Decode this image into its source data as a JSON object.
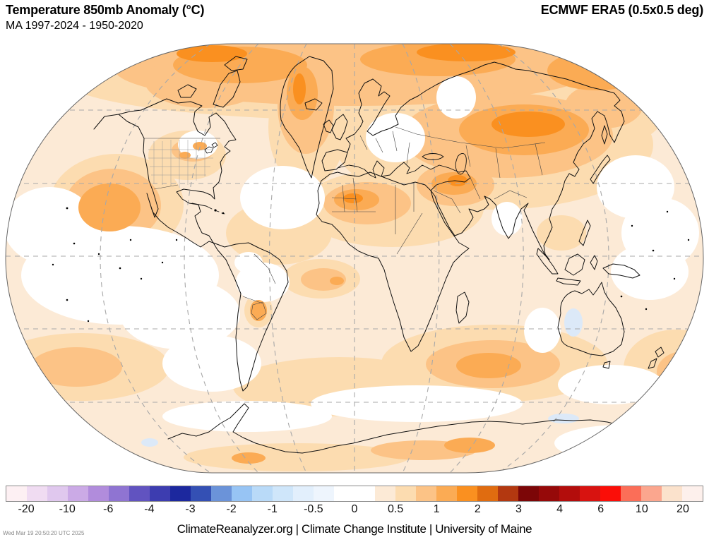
{
  "header": {
    "title": "Temperature 850mb Anomaly (°C)",
    "subtitle": "MA 1997-2024 - 1950-2020",
    "source": "ECMWF ERA5 (0.5x0.5 deg)"
  },
  "footer": {
    "credit": "ClimateReanalyzer.org | Climate Change Institute | University of Maine",
    "timestamp": "Wed Mar 19 20:50:20 UTC 2025"
  },
  "colorbar": {
    "units": "°C",
    "tick_labels": [
      "-20",
      "-10",
      "-6",
      "-4",
      "-3",
      "-2",
      "-1",
      "-0.5",
      "0",
      "0.5",
      "1",
      "2",
      "3",
      "4",
      "6",
      "10",
      "20"
    ],
    "segments": [
      "#fdf0f3",
      "#f0dcf2",
      "#e0c8ee",
      "#cbaae6",
      "#b18cdc",
      "#8f74d2",
      "#6153c0",
      "#3d3db0",
      "#1c289e",
      "#3450b4",
      "#6b93d9",
      "#97c4f4",
      "#b9daf8",
      "#cfe6fa",
      "#e2effc",
      "#eef5fd",
      "#ffffff",
      "#ffffff",
      "#fcead6",
      "#fcdcb0",
      "#fcc386",
      "#fbab54",
      "#fa9020",
      "#e06c10",
      "#b33810",
      "#7c0607",
      "#960909",
      "#b30d0c",
      "#d81310",
      "#fb0e08",
      "#fb6e58",
      "#fba68e",
      "#fbe2cc",
      "#fdf0ec"
    ]
  },
  "chart_data": {
    "type": "heatmap",
    "title": "Temperature 850mb Anomaly (°C)",
    "subtitle": "MA 1997-2024 - 1950-2020",
    "dataset": "ECMWF ERA5 (0.5x0.5 deg)",
    "projection": "robinson-style world map, graticule dashed every 30° lat / 45° lon",
    "units": "°C",
    "colorbar_ticks": [
      -20,
      -10,
      -6,
      -4,
      -3,
      -2,
      -1,
      -0.5,
      0,
      0.5,
      1,
      2,
      3,
      4,
      6,
      10,
      20
    ],
    "legend_position": "bottom",
    "regions": [
      {
        "region": "Arctic Ocean / Siberian coast",
        "anomaly_c": 2.0
      },
      {
        "region": "Central Asia / Kazakhstan / Mongolia",
        "anomaly_c": 2.0
      },
      {
        "region": "Greenland",
        "anomaly_c": 1.5
      },
      {
        "region": "Canadian Arctic islands",
        "anomaly_c": 1.5
      },
      {
        "region": "NW Sahara (Algeria/Mali)",
        "anomaly_c": 1.5
      },
      {
        "region": "Iran / Middle East",
        "anomaly_c": 1.5
      },
      {
        "region": "Contiguous US Midwest",
        "anomaly_c": 1.0
      },
      {
        "region": "North-east Pacific blob",
        "anomaly_c": 1.5
      },
      {
        "region": "North Atlantic south of Greenland",
        "anomaly_c": 0.0
      },
      {
        "region": "Eastern tropical Pacific",
        "anomaly_c": 0.0
      },
      {
        "region": "Baltic / NW Russia",
        "anomaly_c": 0.1
      },
      {
        "region": "Kara Sea",
        "anomaly_c": 0.1
      },
      {
        "region": "South Indian Ocean blob",
        "anomaly_c": 1.2
      },
      {
        "region": "Central South America",
        "anomaly_c": 0.1
      },
      {
        "region": "Paraguay",
        "anomaly_c": 0.8
      },
      {
        "region": "Western Australia interior",
        "anomaly_c": -0.3
      },
      {
        "region": "Antarctic coastal spots",
        "anomaly_c": -0.3
      },
      {
        "region": "Global ocean background",
        "anomaly_c": 0.4
      }
    ],
    "map_palette": {
      "near_zero": "#ffffff",
      "p025_05": "#fcead6",
      "p05_075": "#fcdcb0",
      "p075_1": "#fcc386",
      "p1_15": "#fbab54",
      "p15_2": "#fa9020",
      "slight_negative": "#dce9f8"
    }
  }
}
